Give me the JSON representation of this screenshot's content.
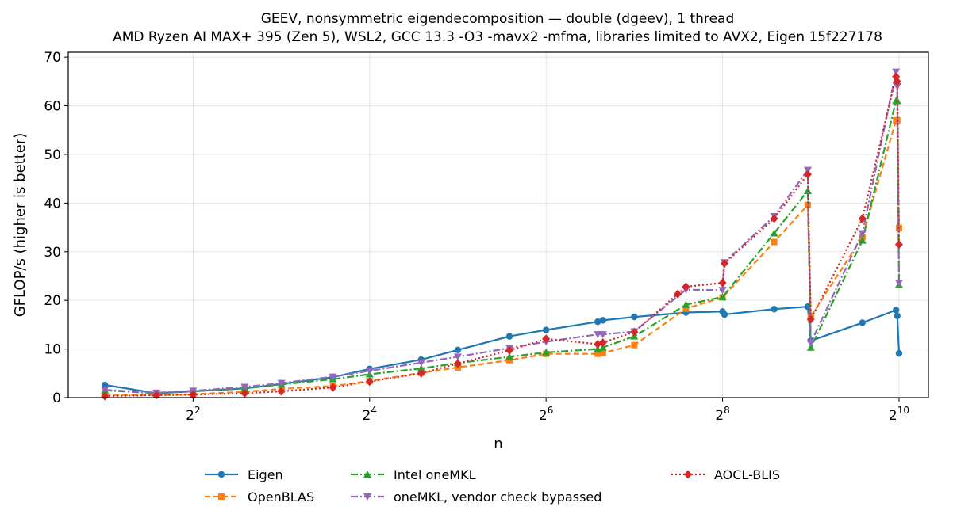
{
  "chart_data": {
    "type": "line",
    "title": "GEEV, nonsymmetric eigendecomposition — double (dgeev), 1 thread",
    "subtitle": "AMD Ryzen AI MAX+ 395 (Zen 5), WSL2, GCC 13.3 -O3 -mavx2 -mfma, libraries limited to AVX2, Eigen 15f227178",
    "xlabel": "n",
    "ylabel": "GFLOP/s (higher is better)",
    "x_scale": "log2",
    "xlim": [
      1.5,
      1290
    ],
    "ylim": [
      0,
      71
    ],
    "x_ticks": [
      4,
      16,
      64,
      256,
      1024
    ],
    "y_ticks": [
      0,
      10,
      20,
      30,
      40,
      50,
      60,
      70
    ],
    "grid": true,
    "legend_position": "bottom-outside",
    "series": [
      {
        "name": "Eigen",
        "color": "#1f77b4",
        "marker": "circle",
        "linestyle": "solid",
        "x": [
          2,
          3,
          4,
          6,
          8,
          12,
          16,
          24,
          32,
          48,
          64,
          96,
          100,
          128,
          192,
          256,
          260,
          384,
          500,
          512,
          768,
          1000,
          1010,
          1024
        ],
        "y": [
          2.6,
          0.9,
          1.3,
          1.9,
          2.8,
          4.2,
          5.9,
          7.8,
          9.8,
          12.6,
          13.9,
          15.6,
          15.9,
          16.6,
          17.5,
          17.7,
          17.1,
          18.2,
          18.7,
          11.7,
          15.4,
          18.0,
          16.8,
          9.1
        ]
      },
      {
        "name": "OpenBLAS",
        "color": "#ff7f0e",
        "marker": "square",
        "linestyle": "dashed",
        "x": [
          2,
          3,
          4,
          6,
          8,
          12,
          16,
          24,
          32,
          48,
          64,
          96,
          100,
          128,
          192,
          256,
          384,
          500,
          512,
          768,
          1000,
          1010,
          1024
        ],
        "y": [
          0.5,
          0.5,
          0.7,
          1.2,
          1.8,
          2.4,
          3.4,
          5.1,
          6.2,
          7.7,
          9.0,
          9.0,
          9.2,
          10.8,
          18.3,
          20.6,
          32.0,
          39.6,
          16.7,
          33.0,
          57.0,
          57.0,
          34.9
        ]
      },
      {
        "name": "Intel oneMKL",
        "color": "#2ca02c",
        "marker": "triangle-up",
        "linestyle": "dashdot",
        "x": [
          2,
          3,
          4,
          6,
          8,
          12,
          16,
          24,
          32,
          48,
          64,
          96,
          100,
          128,
          192,
          256,
          384,
          500,
          512,
          768,
          1000,
          1010,
          1024
        ],
        "y": [
          1.5,
          0.9,
          1.3,
          1.9,
          2.7,
          3.8,
          4.8,
          6.0,
          7.1,
          8.4,
          9.3,
          10.0,
          10.3,
          12.6,
          19.1,
          20.7,
          33.8,
          42.5,
          10.3,
          32.3,
          61.0,
          61.0,
          23.2
        ]
      },
      {
        "name": "oneMKL, vendor check bypassed",
        "color": "#9467bd",
        "marker": "triangle-down",
        "linestyle": "dashdot",
        "x": [
          2,
          3,
          4,
          6,
          8,
          12,
          16,
          24,
          32,
          48,
          64,
          96,
          100,
          128,
          192,
          256,
          260,
          384,
          500,
          512,
          768,
          1000,
          1010,
          1024
        ],
        "y": [
          1.6,
          1.0,
          1.4,
          2.2,
          3.0,
          4.3,
          5.5,
          7.2,
          8.4,
          10.2,
          11.5,
          13.0,
          13.0,
          13.6,
          22.2,
          22.1,
          27.8,
          37.3,
          46.8,
          11.3,
          33.8,
          67.0,
          64.0,
          23.6
        ]
      },
      {
        "name": "AOCL-BLIS",
        "color": "#d62728",
        "marker": "diamond",
        "linestyle": "dotted",
        "x": [
          2,
          3,
          4,
          6,
          8,
          12,
          16,
          24,
          32,
          48,
          64,
          96,
          100,
          128,
          180,
          192,
          256,
          260,
          384,
          500,
          512,
          768,
          1000,
          1010,
          1024
        ],
        "y": [
          0.3,
          0.5,
          0.6,
          0.9,
          1.3,
          2.1,
          3.3,
          5.0,
          7.0,
          9.7,
          12.1,
          11.0,
          11.3,
          13.5,
          21.3,
          22.8,
          23.6,
          27.6,
          36.8,
          45.9,
          16.1,
          36.8,
          66.0,
          65.0,
          31.5
        ]
      }
    ]
  }
}
